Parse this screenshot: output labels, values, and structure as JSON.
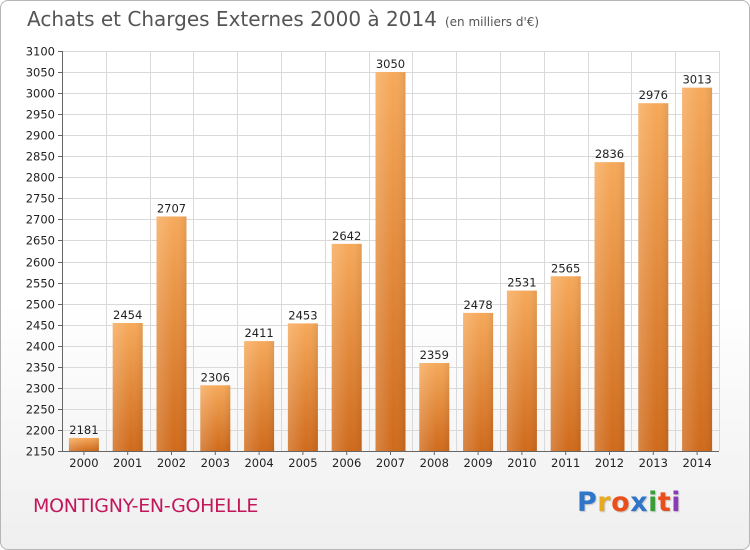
{
  "title": "Achats et Charges Externes 2000 à 2014",
  "subtitle": "(en milliers d'€)",
  "location": "MONTIGNY-EN-GOHELLE",
  "logo": {
    "letters": [
      "P",
      "r",
      "o",
      "x",
      "i",
      "t",
      "i"
    ],
    "colors": [
      "#2f76c9",
      "#e7a91e",
      "#e94e1b",
      "#2f76c9",
      "#3a9d3a",
      "#e94e1b",
      "#8a3ab9"
    ]
  },
  "colors": {
    "bar_top": "#f6a95a",
    "bar_bottom": "#cf6a1b",
    "grid": "#d9d9d9",
    "axis": "#666666",
    "text": "#222222"
  },
  "chart_data": {
    "type": "bar",
    "categories": [
      "2000",
      "2001",
      "2002",
      "2003",
      "2004",
      "2005",
      "2006",
      "2007",
      "2008",
      "2009",
      "2010",
      "2011",
      "2012",
      "2013",
      "2014"
    ],
    "values": [
      2181,
      2454,
      2707,
      2306,
      2411,
      2453,
      2642,
      3050,
      2359,
      2478,
      2531,
      2565,
      2836,
      2976,
      3013
    ],
    "ylim": [
      2150,
      3100
    ],
    "yticks": [
      2150,
      2200,
      2250,
      2300,
      2350,
      2400,
      2450,
      2500,
      2550,
      2600,
      2650,
      2700,
      2750,
      2800,
      2850,
      2900,
      2950,
      3000,
      3050,
      3100
    ],
    "title": "Achats et Charges Externes 2000 à 2014",
    "xlabel": "",
    "ylabel": "",
    "grid": true,
    "legend": "none"
  }
}
